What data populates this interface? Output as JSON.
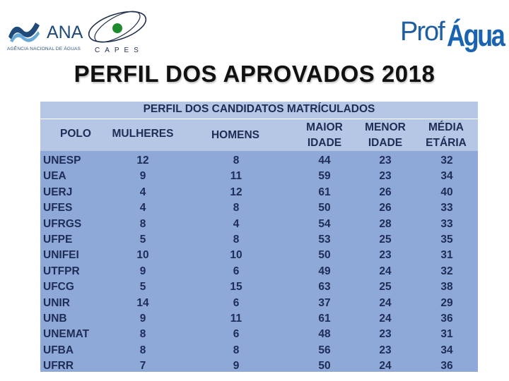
{
  "logos": {
    "ana": {
      "name": "ANA",
      "subtitle": "AGÊNCIA NACIONAL DE ÁGUAS"
    },
    "capes": {
      "name": "CAPES"
    },
    "profagua": {
      "prefix": "Prof",
      "suffix": "Água"
    }
  },
  "title": "PERFIL DOS APROVADOS 2018",
  "table": {
    "caption": "PERFIL DOS CANDIDATOS MATRÍCULADOS",
    "headers": {
      "polo": "POLO",
      "mulheres": "MULHERES",
      "homens": "HOMENS",
      "maior_l1": "MAIOR",
      "maior_l2": "IDADE",
      "menor_l1": "MENOR",
      "menor_l2": "IDADE",
      "media_l1": "MÉDIA",
      "media_l2": "ETÁRIA"
    },
    "rows": [
      [
        "UNESP",
        "12",
        "8",
        "44",
        "23",
        "32"
      ],
      [
        "UEA",
        "9",
        "11",
        "59",
        "23",
        "34"
      ],
      [
        "UERJ",
        "4",
        "12",
        "61",
        "26",
        "40"
      ],
      [
        "UFES",
        "4",
        "8",
        "50",
        "26",
        "33"
      ],
      [
        "UFRGS",
        "8",
        "4",
        "54",
        "28",
        "33"
      ],
      [
        "UFPE",
        "5",
        "8",
        "53",
        "25",
        "35"
      ],
      [
        "UNIFEI",
        "10",
        "10",
        "50",
        "23",
        "31"
      ],
      [
        "UTFPR",
        "9",
        "6",
        "49",
        "24",
        "32"
      ],
      [
        "UFCG",
        "5",
        "15",
        "63",
        "25",
        "38"
      ],
      [
        "UNIR",
        "14",
        "6",
        "37",
        "24",
        "29"
      ],
      [
        "UNB",
        "9",
        "11",
        "61",
        "24",
        "36"
      ],
      [
        "UNEMAT",
        "8",
        "6",
        "48",
        "23",
        "31"
      ],
      [
        "UFBA",
        "8",
        "8",
        "56",
        "23",
        "34"
      ],
      [
        "UFRR",
        "7",
        "9",
        "50",
        "24",
        "36"
      ]
    ]
  },
  "colors": {
    "header_bg": "#b6c7e6",
    "body_bg": "#8ea9d8",
    "text": "#1e2c56"
  }
}
